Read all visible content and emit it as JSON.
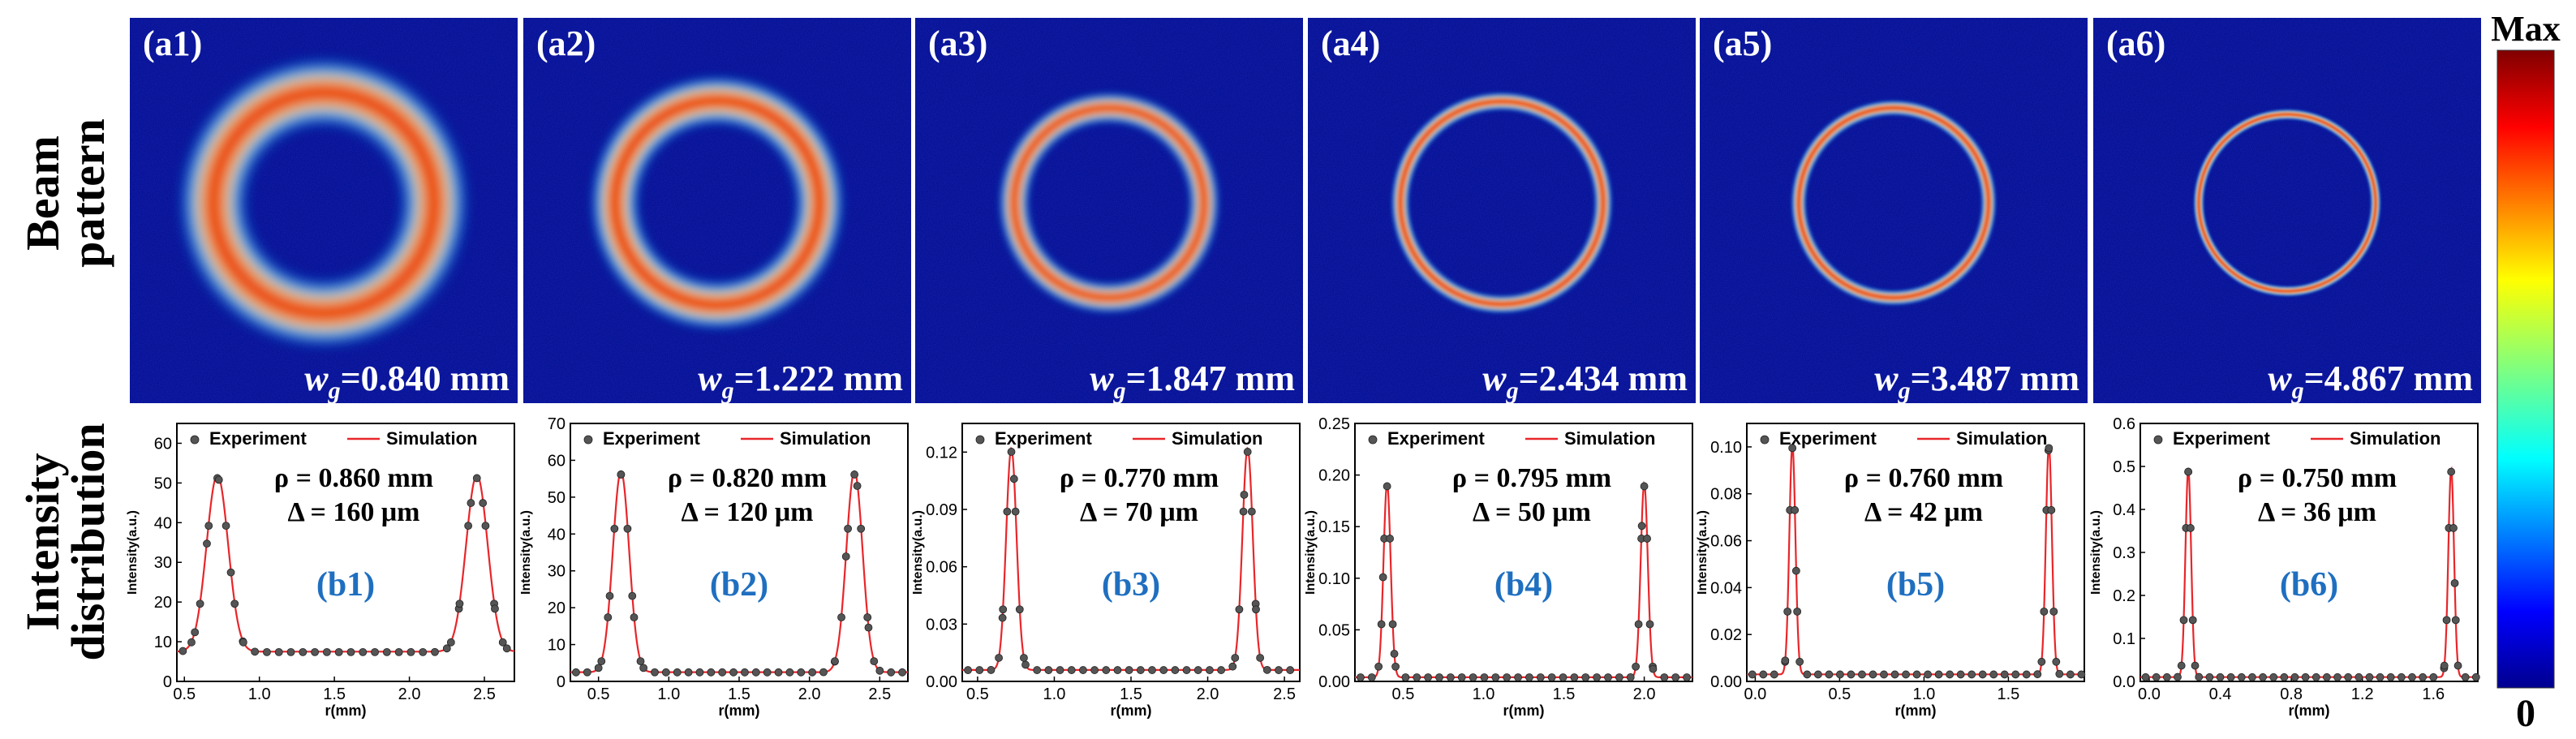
{
  "row_labels": {
    "top": [
      "Beam",
      "pattern"
    ],
    "bottom": [
      "Intensity",
      "distribution"
    ]
  },
  "colorbar": {
    "max_label": "Max",
    "min_label": "0"
  },
  "colors": {
    "panel_background": "#00088f",
    "simulation_line": "#e8262a",
    "experiment_marker": "#555555",
    "panel_label_blue": "#1f6fc0"
  },
  "chart_data": [
    {
      "type": "line",
      "id": "b1",
      "image": {
        "label": "(a1)",
        "wg_symbol": "w",
        "wg_sub": "g",
        "wg_value": "=0.840 mm"
      },
      "legend": [
        "Experiment",
        "Simulation"
      ],
      "label": "(b1)",
      "rho_text": "ρ = 0.860 mm",
      "delta_text": "Δ = 160 μm",
      "xlabel": "r(mm)",
      "ylabel": "Intensity(a.u.)",
      "xlim": [
        0.45,
        2.7
      ],
      "ylim": [
        0,
        65
      ],
      "xticks": [
        0.5,
        1.0,
        1.5,
        2.0,
        2.5
      ],
      "xtick_labels": [
        "0.5",
        "1.0",
        "1.5",
        "2.0",
        "2.5"
      ],
      "yticks": [
        0,
        10,
        20,
        30,
        40,
        50,
        60
      ],
      "ytick_labels": [
        "0",
        "10",
        "20",
        "30",
        "40",
        "50",
        "60"
      ],
      "baseline": 7.5,
      "peaks": [
        0.72,
        2.45
      ],
      "amplitude": 44.5,
      "sigma": 0.072,
      "exp_step": 0.08
    },
    {
      "type": "line",
      "id": "b2",
      "image": {
        "label": "(a2)",
        "wg_symbol": "w",
        "wg_sub": "g",
        "wg_value": "=1.222 mm"
      },
      "legend": [
        "Experiment",
        "Simulation"
      ],
      "label": "(b2)",
      "rho_text": "ρ = 0.820 mm",
      "delta_text": "Δ = 120 μm",
      "xlabel": "r(mm)",
      "ylabel": "Intensity(a.u.)",
      "xlim": [
        0.3,
        2.7
      ],
      "ylim": [
        0,
        70
      ],
      "xticks": [
        0.5,
        1.0,
        1.5,
        2.0,
        2.5
      ],
      "xtick_labels": [
        "0.5",
        "1.0",
        "1.5",
        "2.0",
        "2.5"
      ],
      "yticks": [
        0,
        10,
        20,
        30,
        40,
        50,
        60,
        70
      ],
      "ytick_labels": [
        "0",
        "10",
        "20",
        "30",
        "40",
        "50",
        "60",
        "70"
      ],
      "baseline": 2.5,
      "peaks": [
        0.66,
        2.32
      ],
      "amplitude": 54.5,
      "sigma": 0.058,
      "exp_step": 0.08
    },
    {
      "type": "line",
      "id": "b3",
      "image": {
        "label": "(a3)",
        "wg_symbol": "w",
        "wg_sub": "g",
        "wg_value": "=1.847 mm"
      },
      "legend": [
        "Experiment",
        "Simulation"
      ],
      "label": "(b3)",
      "rho_text": "ρ = 0.770 mm",
      "delta_text": "Δ = 70 μm",
      "xlabel": "r(mm)",
      "ylabel": "Intensity(a.u.)",
      "xlim": [
        0.4,
        2.6
      ],
      "ylim": [
        0,
        0.135
      ],
      "xticks": [
        0.5,
        1.0,
        1.5,
        2.0,
        2.5
      ],
      "xtick_labels": [
        "0.5",
        "1.0",
        "1.5",
        "2.0",
        "2.5"
      ],
      "yticks": [
        0,
        0.03,
        0.06,
        0.09,
        0.12
      ],
      "ytick_labels": [
        "0.00",
        "0.03",
        "0.06",
        "0.09",
        "0.12"
      ],
      "baseline": 0.006,
      "peaks": [
        0.72,
        2.26
      ],
      "amplitude": 0.116,
      "sigma": 0.034,
      "exp_step": 0.075
    },
    {
      "type": "line",
      "id": "b4",
      "image": {
        "label": "(a4)",
        "wg_symbol": "w",
        "wg_sub": "g",
        "wg_value": "=2.434 mm"
      },
      "legend": [
        "Experiment",
        "Simulation"
      ],
      "label": "(b4)",
      "rho_text": "ρ = 0.795 mm",
      "delta_text": "Δ = 50 μm",
      "xlabel": "r(mm)",
      "ylabel": "Intensity(a.u.)",
      "xlim": [
        0.2,
        2.3
      ],
      "ylim": [
        0,
        0.25
      ],
      "xticks": [
        0.5,
        1.0,
        1.5,
        2.0
      ],
      "xtick_labels": [
        "0.5",
        "1.0",
        "1.5",
        "2.0"
      ],
      "yticks": [
        0,
        0.05,
        0.1,
        0.15,
        0.2,
        0.25
      ],
      "ytick_labels": [
        "0.00",
        "0.05",
        "0.10",
        "0.15",
        "0.20",
        "0.25"
      ],
      "baseline": 0.004,
      "peaks": [
        0.4,
        2.0
      ],
      "amplitude": 0.188,
      "sigma": 0.022,
      "exp_step": 0.07
    },
    {
      "type": "line",
      "id": "b5",
      "image": {
        "label": "(a5)",
        "wg_symbol": "w",
        "wg_sub": "g",
        "wg_value": "=3.487 mm"
      },
      "legend": [
        "Experiment",
        "Simulation"
      ],
      "label": "(b5)",
      "rho_text": "ρ = 0.760 mm",
      "delta_text": "Δ = 42 μm",
      "xlabel": "r(mm)",
      "ylabel": "Intensity(a.u.)",
      "xlim": [
        -0.05,
        1.95
      ],
      "ylim": [
        0,
        0.11
      ],
      "xticks": [
        0.0,
        0.5,
        1.0,
        1.5
      ],
      "xtick_labels": [
        "0.0",
        "0.5",
        "1.0",
        "1.5"
      ],
      "yticks": [
        0,
        0.02,
        0.04,
        0.06,
        0.08,
        0.1
      ],
      "ytick_labels": [
        "0.00",
        "0.02",
        "0.04",
        "0.06",
        "0.08",
        "0.10"
      ],
      "baseline": 0.003,
      "peaks": [
        0.22,
        1.74
      ],
      "amplitude": 0.098,
      "sigma": 0.018,
      "exp_step": 0.065
    },
    {
      "type": "line",
      "id": "b6",
      "image": {
        "label": "(a6)",
        "wg_symbol": "w",
        "wg_sub": "g",
        "wg_value": "=4.867 mm"
      },
      "legend": [
        "Experiment",
        "Simulation"
      ],
      "label": "(b6)",
      "rho_text": "ρ = 0.750 mm",
      "delta_text": "Δ = 36 μm",
      "xlabel": "r(mm)",
      "ylabel": "Intensity(a.u.)",
      "xlim": [
        -0.05,
        1.85
      ],
      "ylim": [
        0,
        0.6
      ],
      "xticks": [
        0.0,
        0.4,
        0.8,
        1.2,
        1.6
      ],
      "xtick_labels": [
        "0.0",
        "0.4",
        "0.8",
        "1.2",
        "1.6"
      ],
      "yticks": [
        0,
        0.1,
        0.2,
        0.3,
        0.4,
        0.5,
        0.6
      ],
      "ytick_labels": [
        "0.0",
        "0.1",
        "0.2",
        "0.3",
        "0.4",
        "0.5",
        "0.6"
      ],
      "baseline": 0.01,
      "peaks": [
        0.22,
        1.7
      ],
      "amplitude": 0.485,
      "sigma": 0.016,
      "exp_step": 0.06
    }
  ]
}
